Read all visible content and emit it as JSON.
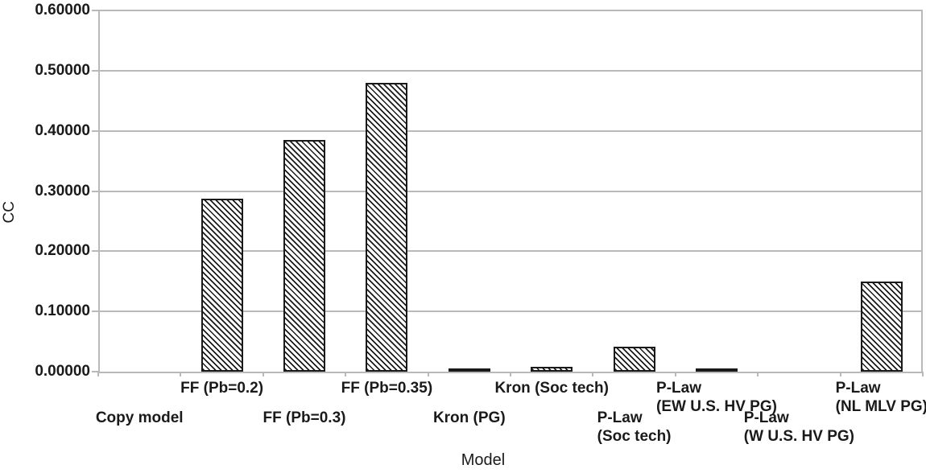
{
  "chart_data": {
    "type": "bar",
    "title": "",
    "xlabel": "Model",
    "ylabel": "CC",
    "ylim": [
      0,
      0.6
    ],
    "grid": true,
    "legend": false,
    "bar_fill_style": "diagonal-hatch",
    "y_ticks": [
      {
        "value": 0.0,
        "label": "0.00000"
      },
      {
        "value": 0.1,
        "label": "0.10000"
      },
      {
        "value": 0.2,
        "label": "0.20000"
      },
      {
        "value": 0.3,
        "label": "0.30000"
      },
      {
        "value": 0.4,
        "label": "0.40000"
      },
      {
        "value": 0.5,
        "label": "0.50000"
      },
      {
        "value": 0.6,
        "label": "0.60000"
      }
    ],
    "categories": [
      "Copy model",
      "FF (Pb=0.2)",
      "FF (Pb=0.3)",
      "FF (Pb=0.35)",
      "Kron (PG)",
      "Kron (Soc tech)",
      "P-Law (Soc tech)",
      "P-Law (EW U.S. HV PG)",
      "P-Law (W U.S. HV PG)",
      "P-Law (NL MLV PG)"
    ],
    "values": [
      0.0,
      0.287,
      0.385,
      0.48,
      0.002,
      0.008,
      0.042,
      0.003,
      0.0,
      0.15
    ],
    "x_labels": [
      {
        "lines": [
          "Copy model"
        ],
        "row": "lower"
      },
      {
        "lines": [
          "FF (Pb=0.2)"
        ],
        "row": "upper"
      },
      {
        "lines": [
          "FF (Pb=0.3)"
        ],
        "row": "lower"
      },
      {
        "lines": [
          "FF (Pb=0.35)"
        ],
        "row": "upper"
      },
      {
        "lines": [
          "Kron (PG)"
        ],
        "row": "lower"
      },
      {
        "lines": [
          "Kron (Soc tech)"
        ],
        "row": "upper"
      },
      {
        "lines": [
          "P-Law",
          "(Soc tech)"
        ],
        "row": "lower"
      },
      {
        "lines": [
          "P-Law",
          "(EW U.S. HV PG)"
        ],
        "row": "upper"
      },
      {
        "lines": [
          "P-Law",
          "(W U.S. HV PG)"
        ],
        "row": "lower"
      },
      {
        "lines": [
          "P-Law",
          "(NL MLV PG)"
        ],
        "row": "upper"
      }
    ]
  },
  "colors": {
    "background": "#ffffff",
    "grid": "#b9b9b9",
    "axis": "#b9b9b9",
    "text": "#1a1a1a",
    "bar_border": "#1a1a1a",
    "bar_hatch": "#1a1a1a",
    "bar_fill": "#ffffff"
  }
}
